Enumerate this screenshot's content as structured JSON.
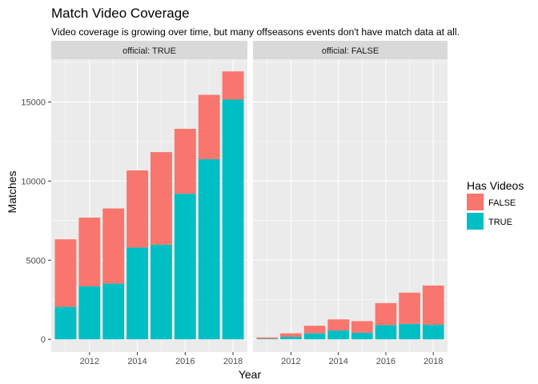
{
  "chart_data": {
    "type": "bar",
    "stacked": true,
    "title": "Match Video Coverage",
    "subtitle": "Video coverage is growing over time, but many offseasons events don't have match data at all.",
    "xlabel": "Year",
    "ylabel": "Matches",
    "x_ticks": [
      2012,
      2014,
      2016,
      2018
    ],
    "y_ticks": [
      0,
      5000,
      10000,
      15000
    ],
    "y_tick_labels": [
      "0",
      "5000",
      "10000",
      "15000"
    ],
    "xlim": [
      2010.4,
      2018.6
    ],
    "ylim": [
      -800,
      17700
    ],
    "legend": {
      "title": "Has Videos",
      "placement": "right",
      "entries": [
        {
          "label": "FALSE",
          "color": "#F8766D"
        },
        {
          "label": "TRUE",
          "color": "#00BFC4"
        }
      ]
    },
    "facets": [
      {
        "label": "official: TRUE",
        "years": [
          2011,
          2012,
          2013,
          2014,
          2015,
          2016,
          2017,
          2018
        ],
        "series": [
          {
            "name": "TRUE",
            "values": [
              2050,
              3350,
              3520,
              5800,
              5980,
              9200,
              11380,
              15150
            ]
          },
          {
            "name": "FALSE",
            "values": [
              4270,
              4340,
              4750,
              4870,
              5850,
              4100,
              4070,
              1780
            ]
          }
        ]
      },
      {
        "label": "official: FALSE",
        "years": [
          2011,
          2012,
          2013,
          2014,
          2015,
          2016,
          2017,
          2018
        ],
        "series": [
          {
            "name": "TRUE",
            "values": [
              40,
              160,
              380,
              560,
              420,
              900,
              980,
              920
            ]
          },
          {
            "name": "FALSE",
            "values": [
              80,
              220,
              480,
              700,
              730,
              1390,
              1970,
              2480
            ]
          }
        ]
      }
    ]
  },
  "colors": {
    "panel_bg": "#EBEBEB",
    "grid": "#FFFFFF",
    "strip_bg": "#D9D9D9",
    "false_bar": "#F8766D",
    "true_bar": "#00BFC4"
  }
}
